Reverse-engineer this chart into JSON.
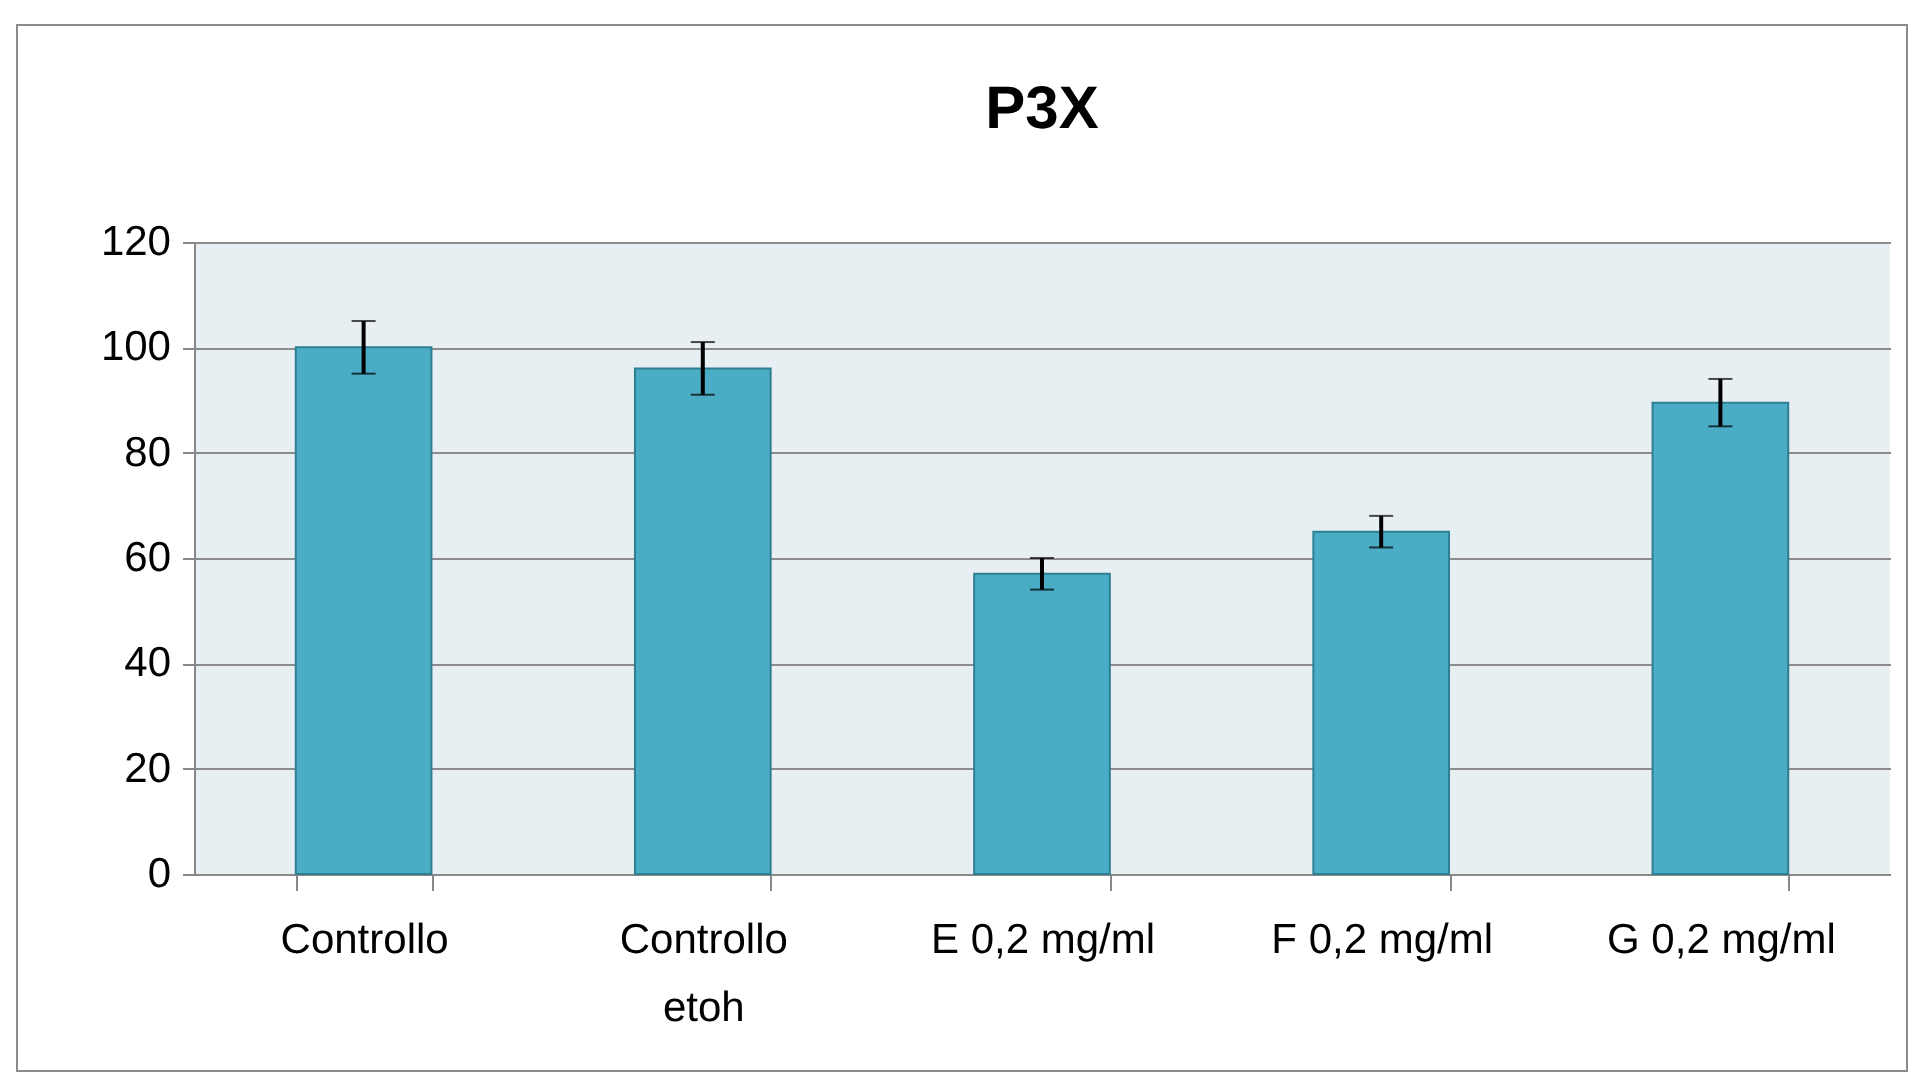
{
  "chart_data": {
    "type": "bar",
    "title": "P3X",
    "categories": [
      "Controllo",
      "Controllo etoh",
      "E 0,2 mg/ml",
      "F 0,2 mg/ml",
      "G 0,2 mg/ml"
    ],
    "values": [
      100,
      96,
      57,
      65,
      89.5
    ],
    "errors": [
      5,
      5,
      3,
      3,
      4.5
    ],
    "color": "#4bacc6",
    "ylim": [
      0,
      120
    ],
    "yticks": [
      0,
      20,
      40,
      60,
      80,
      100,
      120
    ],
    "grid": "y"
  }
}
